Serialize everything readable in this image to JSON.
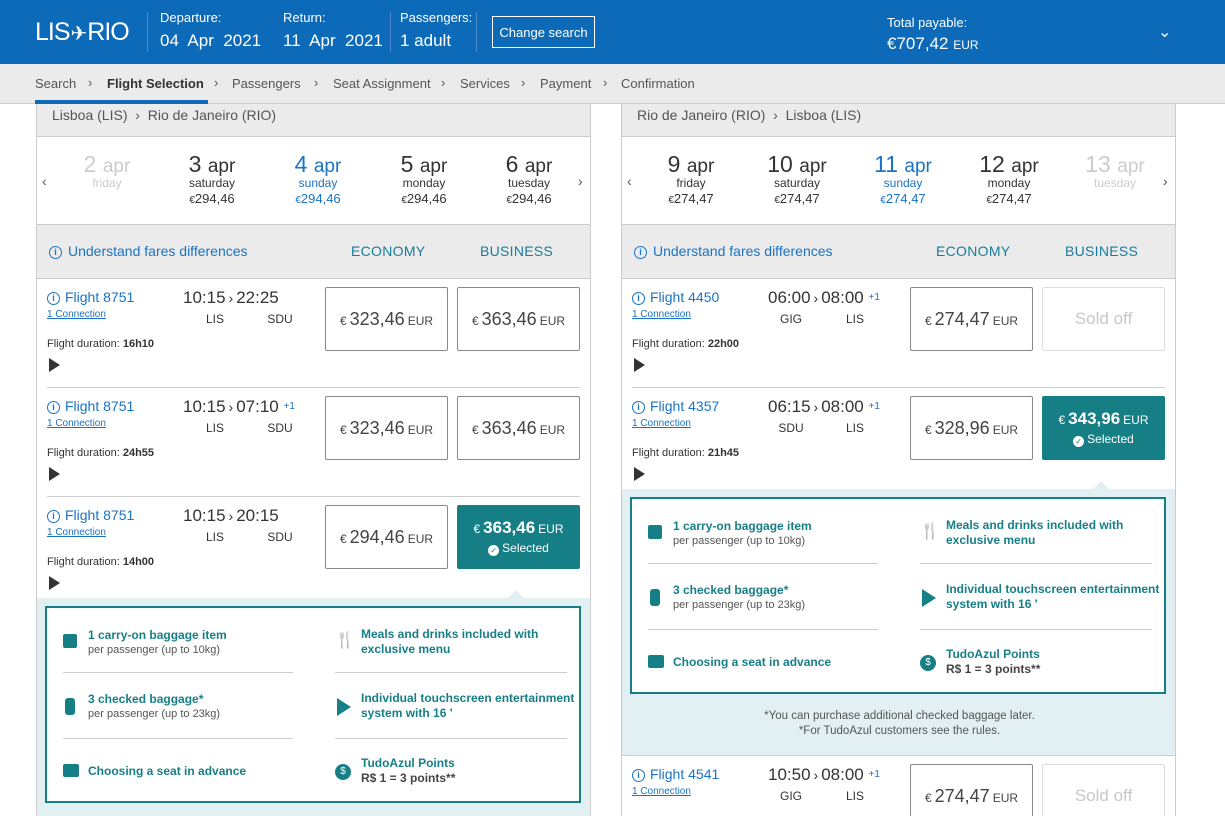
{
  "header": {
    "logo_from": "LIS",
    "logo_to": "RIO",
    "departure_label": "Departure:",
    "departure_value": "04  Apr  2021",
    "return_label": "Return:",
    "return_value": "11  Apr  2021",
    "passengers_label": "Passengers:",
    "passengers_value": "1 adult",
    "change_search": "Change search",
    "total_label": "Total payable:",
    "total_amount": "€707,42",
    "total_currency": "EUR"
  },
  "breadcrumb": [
    "Search",
    "Flight Selection",
    "Passengers",
    "Seat Assignment",
    "Services",
    "Payment",
    "Confirmation"
  ],
  "common": {
    "understand": "Understand fares differences",
    "economy": "ECONOMY",
    "business": "BUSINESS",
    "connection": "1 Connection",
    "duration_label": "Flight duration: ",
    "eur": "EUR",
    "euro": "€",
    "selected": "Selected",
    "sold_off": "Sold off"
  },
  "outbound": {
    "route_from": "Lisboa (LIS)",
    "route_to": "Rio de Janeiro (RIO)",
    "dates": [
      {
        "day": "2",
        "mon": "apr",
        "wd": "friday",
        "price": "",
        "state": "disabled"
      },
      {
        "day": "3",
        "mon": "apr",
        "wd": "saturday",
        "price": "294,46",
        "state": "normal"
      },
      {
        "day": "4",
        "mon": "apr",
        "wd": "sunday",
        "price": "294,46",
        "state": "selected"
      },
      {
        "day": "5",
        "mon": "apr",
        "wd": "monday",
        "price": "294,46",
        "state": "normal"
      },
      {
        "day": "6",
        "mon": "apr",
        "wd": "tuesday",
        "price": "294,46",
        "state": "normal"
      }
    ],
    "flights": [
      {
        "number": "Flight 8751",
        "dep": "10:15",
        "arr": "22:25",
        "plus": "",
        "from": "LIS",
        "to": "SDU",
        "duration": "16h10",
        "economy": "323,46",
        "business": "363,46",
        "selected": ""
      },
      {
        "number": "Flight 8751",
        "dep": "10:15",
        "arr": "07:10",
        "plus": "+1",
        "from": "LIS",
        "to": "SDU",
        "duration": "24h55",
        "economy": "323,46",
        "business": "363,46",
        "selected": ""
      },
      {
        "number": "Flight 8751",
        "dep": "10:15",
        "arr": "20:15",
        "plus": "",
        "from": "LIS",
        "to": "SDU",
        "duration": "14h00",
        "economy": "294,46",
        "business": "363,46",
        "selected": "business"
      }
    ]
  },
  "inbound": {
    "route_from": "Rio de Janeiro (RIO)",
    "route_to": "Lisboa (LIS)",
    "dates": [
      {
        "day": "9",
        "mon": "apr",
        "wd": "friday",
        "price": "274,47",
        "state": "normal"
      },
      {
        "day": "10",
        "mon": "apr",
        "wd": "saturday",
        "price": "274,47",
        "state": "normal"
      },
      {
        "day": "11",
        "mon": "apr",
        "wd": "sunday",
        "price": "274,47",
        "state": "selected"
      },
      {
        "day": "12",
        "mon": "apr",
        "wd": "monday",
        "price": "274,47",
        "state": "normal"
      },
      {
        "day": "13",
        "mon": "apr",
        "wd": "tuesday",
        "price": "",
        "state": "disabled"
      }
    ],
    "flights": [
      {
        "number": "Flight 4450",
        "dep": "06:00",
        "arr": "08:00",
        "plus": "+1",
        "from": "GIG",
        "to": "LIS",
        "duration": "22h00",
        "economy": "274,47",
        "business": "Sold off",
        "selected": ""
      },
      {
        "number": "Flight 4357",
        "dep": "06:15",
        "arr": "08:00",
        "plus": "+1",
        "from": "SDU",
        "to": "LIS",
        "duration": "21h45",
        "economy": "328,96",
        "business": "343,96",
        "selected": "business"
      },
      {
        "number": "Flight 4541",
        "dep": "10:50",
        "arr": "08:00",
        "plus": "+1",
        "from": "GIG",
        "to": "LIS",
        "duration": "",
        "economy": "274,47",
        "business": "Sold off",
        "selected": ""
      }
    ]
  },
  "benefits": {
    "carry_title": "1 carry-on baggage item",
    "carry_sub": "per passenger (up to 10kg)",
    "meals": "Meals and drinks included with exclusive menu",
    "checked_title": "3 checked baggage*",
    "checked_sub": "per passenger (up to 23kg)",
    "entertainment": "Individual touchscreen entertainment system with 16 '",
    "seat": "Choosing a seat in advance",
    "points_title": "TudoAzul Points",
    "points_sub": "R$ 1 = 3 points**"
  },
  "notes": {
    "line1": "*You can purchase additional checked baggage later.",
    "line2": "*For TudoAzul customers see the rules."
  },
  "colors": {
    "brand_blue": "#0d6ab8",
    "teal": "#167f86",
    "link_blue": "#1a73c4"
  }
}
